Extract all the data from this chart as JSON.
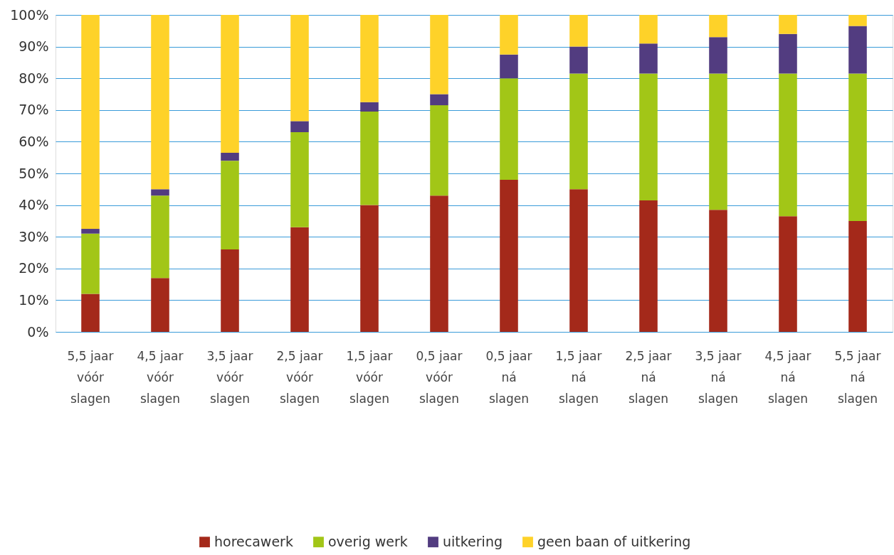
{
  "chart_data": {
    "type": "bar",
    "stacked": true,
    "categories": [
      "5,5 jaar\nvóór\nslagen",
      "4,5 jaar\nvóór\nslagen",
      "3,5 jaar\nvóór\nslagen",
      "2,5 jaar\nvóór\nslagen",
      "1,5 jaar\nvóór\nslagen",
      "0,5 jaar\nvóór\nslagen",
      "0,5 jaar\nná\nslagen",
      "1,5 jaar\nná\nslagen",
      "2,5 jaar\nná\nslagen",
      "3,5 jaar\nná\nslagen",
      "4,5 jaar\nná\nslagen",
      "5,5 jaar\nná\nslagen"
    ],
    "series": [
      {
        "name": "horecawerk",
        "color": "#a4291a",
        "values": [
          12,
          17,
          26,
          33,
          40,
          43,
          48,
          45,
          41.5,
          38.5,
          36.5,
          35
        ]
      },
      {
        "name": "overig werk",
        "color": "#a2c617",
        "values": [
          19,
          26,
          28,
          30,
          29.5,
          28.5,
          32,
          36.5,
          40,
          43,
          45,
          46.5
        ]
      },
      {
        "name": "uitkering",
        "color": "#523c80",
        "values": [
          1.5,
          2,
          2.5,
          3.5,
          3,
          3.5,
          7.5,
          8.5,
          9.5,
          11.5,
          12.5,
          15
        ]
      },
      {
        "name": "geen baan of uitkering",
        "color": "#fed229",
        "values": [
          67.5,
          55,
          43.5,
          33.5,
          27.5,
          25,
          12.5,
          10,
          9,
          7,
          6,
          3.5
        ]
      }
    ],
    "ylim": [
      0,
      100
    ],
    "yticks": [
      {
        "value": 0,
        "label": "0%"
      },
      {
        "value": 10,
        "label": "10%"
      },
      {
        "value": 20,
        "label": "20%"
      },
      {
        "value": 30,
        "label": "30%"
      },
      {
        "value": 40,
        "label": "40%"
      },
      {
        "value": 50,
        "label": "50%"
      },
      {
        "value": 60,
        "label": "60%"
      },
      {
        "value": 70,
        "label": "70%"
      },
      {
        "value": 80,
        "label": "80%"
      },
      {
        "value": 90,
        "label": "90%"
      },
      {
        "value": 100,
        "label": "100%"
      }
    ],
    "grid": "y",
    "legend": "bottom"
  }
}
